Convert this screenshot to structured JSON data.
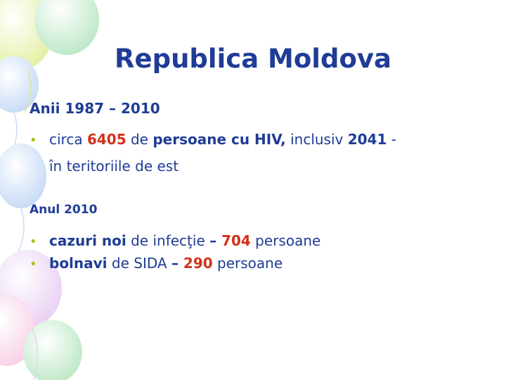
{
  "slide": {
    "title": "Republica Moldova",
    "section1": {
      "heading": "Anii 1987 – 2010",
      "bullet1": {
        "p1": "circa ",
        "n1": "6405",
        "p2": " de ",
        "p3": "persoane cu HIV,",
        "p4": " inclusiv ",
        "n2": "2041",
        "p5": " -",
        "cont": "în teritoriile de est"
      }
    },
    "section2": {
      "heading": "Anul 2010",
      "bullet1": {
        "p1": "cazuri noi",
        "p2": " de infecţie ",
        "p3": "– ",
        "n1": "704",
        "p4": " persoane"
      },
      "bullet2": {
        "p1": "bolnavi",
        "p2": " de SIDA ",
        "p3": "– ",
        "n1": "290",
        "p4": " persoane"
      }
    },
    "bullet_symbol": "•"
  },
  "colors": {
    "text": "#1f3c96",
    "highlight": "#d2311a",
    "bullet": "#b3b81a"
  }
}
